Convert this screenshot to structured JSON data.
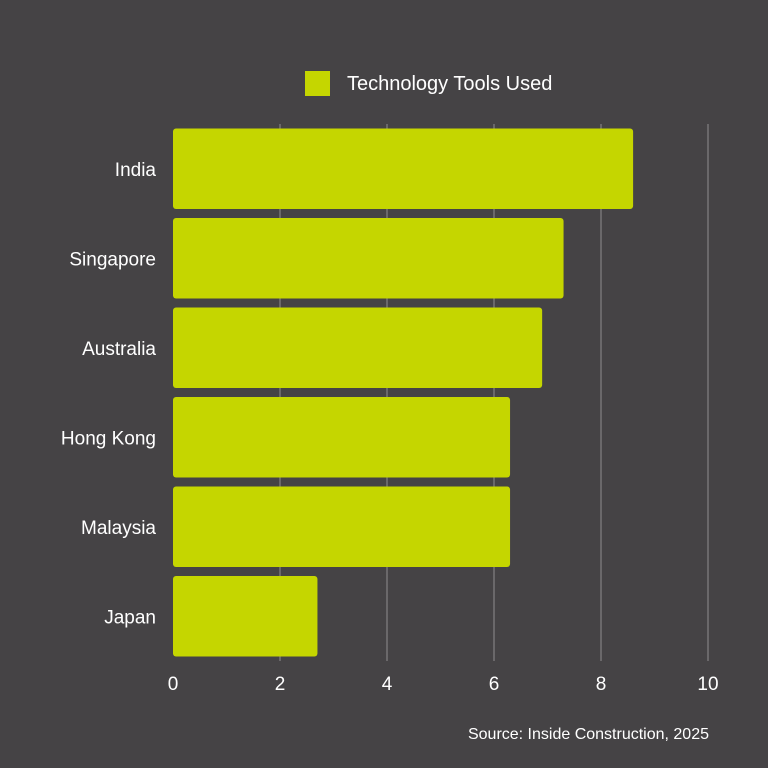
{
  "chart_data": {
    "type": "bar",
    "orientation": "horizontal",
    "categories": [
      "India",
      "Singapore",
      "Australia",
      "Hong Kong",
      "Malaysia",
      "Japan"
    ],
    "series": [
      {
        "name": "Technology Tools Used",
        "values": [
          8.6,
          7.3,
          6.9,
          6.3,
          6.3,
          2.7
        ]
      }
    ],
    "xlim": [
      0,
      10
    ],
    "xticks": [
      "0",
      "2",
      "4",
      "6",
      "8",
      "10"
    ],
    "grid": true,
    "legend": "top-center",
    "source": "Source: Inside Construction, 2025",
    "colors": {
      "background": "#454345",
      "bar": "#c5d600",
      "grid": "#8e8c8e",
      "text": "#ffffff"
    }
  }
}
